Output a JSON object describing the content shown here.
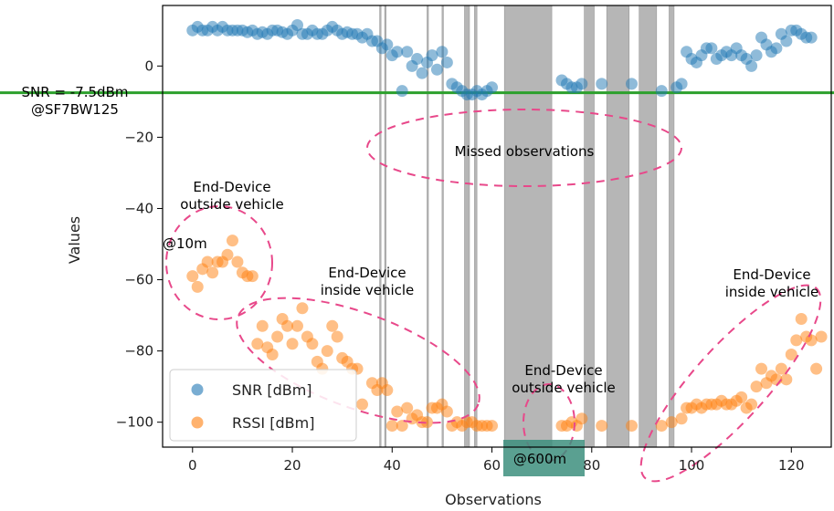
{
  "chart_data": {
    "type": "scatter",
    "xlabel": "Observations",
    "ylabel": "Values",
    "xlim": [
      -6,
      128
    ],
    "ylim": [
      -107,
      17
    ],
    "xticks": [
      0,
      20,
      40,
      60,
      80,
      100,
      120
    ],
    "yticks": [
      0,
      -20,
      -40,
      -60,
      -80,
      -100
    ],
    "tick_labels": {
      "x": [
        "0",
        "20",
        "40",
        "60",
        "80",
        "100",
        "120"
      ],
      "y": [
        "0",
        "−20",
        "−40",
        "−60",
        "−80",
        "−100"
      ]
    },
    "grid": false,
    "legend_position": "lower-left",
    "threshold": {
      "label": "SNR = -7.5dBm\n@SF7BW125",
      "value": -7.5,
      "color": "#2ca02c"
    },
    "missed_bands": [
      [
        37.5,
        37.7
      ],
      [
        38.5,
        38.7
      ],
      [
        47.0,
        47.2
      ],
      [
        50.0,
        50.2
      ],
      [
        54.5,
        55.5
      ],
      [
        56.5,
        57.0
      ],
      [
        62.5,
        72.0
      ],
      [
        78.5,
        80.5
      ],
      [
        83.0,
        87.5
      ],
      [
        89.5,
        93.0
      ],
      [
        95.5,
        96.5
      ]
    ],
    "series": [
      {
        "name": "SNR [dBm]",
        "color": "#1f77b4",
        "points": [
          [
            0,
            10
          ],
          [
            1,
            11
          ],
          [
            2,
            10
          ],
          [
            3,
            10
          ],
          [
            4,
            11
          ],
          [
            5,
            10
          ],
          [
            6,
            11
          ],
          [
            7,
            10
          ],
          [
            8,
            10
          ],
          [
            9,
            10
          ],
          [
            10,
            10
          ],
          [
            11,
            9.5
          ],
          [
            12,
            10
          ],
          [
            13,
            9
          ],
          [
            14,
            9.5
          ],
          [
            15,
            9
          ],
          [
            16,
            10
          ],
          [
            17,
            10
          ],
          [
            18,
            9.5
          ],
          [
            19,
            9
          ],
          [
            20,
            10
          ],
          [
            21,
            11.5
          ],
          [
            22,
            9
          ],
          [
            23,
            9
          ],
          [
            24,
            10
          ],
          [
            25,
            9
          ],
          [
            26,
            9
          ],
          [
            27,
            10
          ],
          [
            28,
            11
          ],
          [
            29,
            10
          ],
          [
            30,
            9
          ],
          [
            31,
            9.5
          ],
          [
            32,
            9
          ],
          [
            33,
            9
          ],
          [
            34,
            8
          ],
          [
            35,
            9
          ],
          [
            36,
            7
          ],
          [
            37,
            7
          ],
          [
            38,
            5
          ],
          [
            39,
            6
          ],
          [
            40,
            3
          ],
          [
            41,
            4
          ],
          [
            42,
            -7
          ],
          [
            43,
            4
          ],
          [
            44,
            0
          ],
          [
            45,
            2
          ],
          [
            46,
            -2
          ],
          [
            47,
            1
          ],
          [
            48,
            3
          ],
          [
            49,
            -1
          ],
          [
            50,
            4
          ],
          [
            51,
            1
          ],
          [
            52,
            -5
          ],
          [
            53,
            -6
          ],
          [
            54,
            -7
          ],
          [
            55,
            -8
          ],
          [
            56,
            -8
          ],
          [
            57,
            -7
          ],
          [
            58,
            -8
          ],
          [
            59,
            -7
          ],
          [
            60,
            -6
          ],
          [
            74,
            -4
          ],
          [
            75,
            -5
          ],
          [
            76,
            -6
          ],
          [
            77,
            -6
          ],
          [
            78,
            -5
          ],
          [
            82,
            -5
          ],
          [
            88,
            -5
          ],
          [
            94,
            -7
          ],
          [
            97,
            -6
          ],
          [
            98,
            -5
          ],
          [
            99,
            4
          ],
          [
            100,
            2
          ],
          [
            101,
            1
          ],
          [
            102,
            3
          ],
          [
            103,
            5
          ],
          [
            104,
            5
          ],
          [
            105,
            2
          ],
          [
            106,
            3
          ],
          [
            107,
            4
          ],
          [
            108,
            3
          ],
          [
            109,
            5
          ],
          [
            110,
            3
          ],
          [
            111,
            2
          ],
          [
            112,
            0
          ],
          [
            113,
            3
          ],
          [
            114,
            8
          ],
          [
            115,
            6
          ],
          [
            116,
            4
          ],
          [
            117,
            5
          ],
          [
            118,
            9
          ],
          [
            119,
            7
          ],
          [
            120,
            10
          ],
          [
            121,
            10
          ],
          [
            122,
            9
          ],
          [
            123,
            8
          ],
          [
            124,
            8
          ]
        ]
      },
      {
        "name": "RSSI [dBm]",
        "color": "#ff7f0e",
        "points": [
          [
            0,
            -59
          ],
          [
            1,
            -62
          ],
          [
            2,
            -57
          ],
          [
            3,
            -55
          ],
          [
            4,
            -58
          ],
          [
            5,
            -55
          ],
          [
            6,
            -55
          ],
          [
            7,
            -53
          ],
          [
            8,
            -49
          ],
          [
            9,
            -55
          ],
          [
            10,
            -58
          ],
          [
            11,
            -59
          ],
          [
            12,
            -59
          ],
          [
            13,
            -78
          ],
          [
            14,
            -73
          ],
          [
            15,
            -79
          ],
          [
            16,
            -81
          ],
          [
            17,
            -76
          ],
          [
            18,
            -71
          ],
          [
            19,
            -73
          ],
          [
            20,
            -78
          ],
          [
            21,
            -73
          ],
          [
            22,
            -68
          ],
          [
            23,
            -76
          ],
          [
            24,
            -78
          ],
          [
            25,
            -83
          ],
          [
            26,
            -85
          ],
          [
            27,
            -80
          ],
          [
            28,
            -73
          ],
          [
            29,
            -76
          ],
          [
            30,
            -82
          ],
          [
            31,
            -83
          ],
          [
            32,
            -85
          ],
          [
            33,
            -85
          ],
          [
            34,
            -95
          ],
          [
            36,
            -89
          ],
          [
            37,
            -91
          ],
          [
            38,
            -89
          ],
          [
            39,
            -91
          ],
          [
            40,
            -101
          ],
          [
            41,
            -97
          ],
          [
            42,
            -101
          ],
          [
            43,
            -96
          ],
          [
            44,
            -99
          ],
          [
            45,
            -98
          ],
          [
            46,
            -100
          ],
          [
            47,
            -100
          ],
          [
            48,
            -96
          ],
          [
            49,
            -96
          ],
          [
            50,
            -95
          ],
          [
            51,
            -97
          ],
          [
            52,
            -101
          ],
          [
            53,
            -100
          ],
          [
            54,
            -101
          ],
          [
            55,
            -100
          ],
          [
            56,
            -100
          ],
          [
            57,
            -101
          ],
          [
            58,
            -101
          ],
          [
            59,
            -101
          ],
          [
            60,
            -101
          ],
          [
            74,
            -101
          ],
          [
            75,
            -101
          ],
          [
            76,
            -100
          ],
          [
            77,
            -101
          ],
          [
            78,
            -99
          ],
          [
            82,
            -101
          ],
          [
            88,
            -101
          ],
          [
            94,
            -101
          ],
          [
            96,
            -100
          ],
          [
            98,
            -99
          ],
          [
            99,
            -96
          ],
          [
            100,
            -96
          ],
          [
            101,
            -95
          ],
          [
            102,
            -96
          ],
          [
            103,
            -95
          ],
          [
            104,
            -95
          ],
          [
            105,
            -95
          ],
          [
            106,
            -94
          ],
          [
            107,
            -95
          ],
          [
            108,
            -95
          ],
          [
            109,
            -94
          ],
          [
            110,
            -93
          ],
          [
            111,
            -96
          ],
          [
            112,
            -95
          ],
          [
            113,
            -90
          ],
          [
            114,
            -85
          ],
          [
            115,
            -89
          ],
          [
            116,
            -87
          ],
          [
            117,
            -88
          ],
          [
            118,
            -85
          ],
          [
            119,
            -88
          ],
          [
            120,
            -81
          ],
          [
            121,
            -77
          ],
          [
            122,
            -71
          ],
          [
            123,
            -76
          ],
          [
            124,
            -77
          ],
          [
            125,
            -85
          ],
          [
            126,
            -76
          ]
        ]
      }
    ],
    "annotations": [
      {
        "text": "Missed observations"
      },
      {
        "text": "End-Device\noutside vehicle"
      },
      {
        "text": "@10m"
      },
      {
        "text": "End-Device\ninside vehicle"
      },
      {
        "text": "End-Device\noutside vehicle"
      },
      {
        "text": "End-Device\ninside vehicle"
      },
      {
        "text": "@600m"
      }
    ]
  }
}
